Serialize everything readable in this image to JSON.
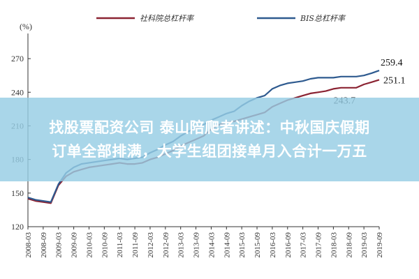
{
  "overlay": {
    "line1": "找股票配资公司 泰山陪爬者讲述：中秋国庆假期",
    "line2": "订单全部排满，大学生组团接单月入合计一万五"
  },
  "chart_data": {
    "type": "line",
    "ylabel": "(%)",
    "ylim": [
      120,
      280
    ],
    "yticks": [
      120,
      150,
      180,
      210,
      240,
      270
    ],
    "xlim": [
      "2008-03",
      "2019-09"
    ],
    "xticks": [
      "2008-03",
      "2008-09",
      "2009-03",
      "2009-09",
      "2010-03",
      "2010-09",
      "2011-03",
      "2011-09",
      "2012-03",
      "2012-09",
      "2013-03",
      "2013-09",
      "2014-03",
      "2014-09",
      "2015-03",
      "2015-09",
      "2016-03",
      "2016-09",
      "2017-03",
      "2017-09",
      "2018-03",
      "2018-09",
      "2019-03",
      "2019-09"
    ],
    "legend_position": "top",
    "grid": false,
    "series": [
      {
        "name": "社科院总杠杆率",
        "color": "#8b2332",
        "x": [
          "2008-03",
          "2008-06",
          "2008-09",
          "2008-12",
          "2009-03",
          "2009-06",
          "2009-09",
          "2009-12",
          "2010-03",
          "2010-06",
          "2010-09",
          "2010-12",
          "2011-03",
          "2011-06",
          "2011-09",
          "2011-12",
          "2012-03",
          "2012-06",
          "2012-09",
          "2012-12",
          "2013-03",
          "2013-06",
          "2013-09",
          "2013-12",
          "2014-03",
          "2014-06",
          "2014-09",
          "2014-12",
          "2015-03",
          "2015-06",
          "2015-09",
          "2015-12",
          "2016-03",
          "2016-06",
          "2016-09",
          "2016-12",
          "2017-03",
          "2017-06",
          "2017-09",
          "2017-12",
          "2018-03",
          "2018-06",
          "2018-09",
          "2018-12",
          "2019-03",
          "2019-06",
          "2019-09"
        ],
        "values": [
          145,
          143,
          142,
          141,
          157,
          165,
          169,
          171,
          173,
          174,
          175,
          176,
          177,
          176,
          176,
          177,
          180,
          182,
          185,
          188,
          192,
          195,
          198,
          201,
          207,
          211,
          213,
          214,
          216,
          218,
          220,
          222,
          227,
          230,
          233,
          235,
          237,
          239,
          240,
          241,
          243,
          244,
          244,
          244,
          247,
          249,
          251.1
        ]
      },
      {
        "name": "BIS总杠杆率",
        "color": "#2e5a8f",
        "x": [
          "2008-03",
          "2008-06",
          "2008-09",
          "2008-12",
          "2009-03",
          "2009-06",
          "2009-09",
          "2009-12",
          "2010-03",
          "2010-06",
          "2010-09",
          "2010-12",
          "2011-03",
          "2011-06",
          "2011-09",
          "2011-12",
          "2012-03",
          "2012-06",
          "2012-09",
          "2012-12",
          "2013-03",
          "2013-06",
          "2013-09",
          "2013-12",
          "2014-03",
          "2014-06",
          "2014-09",
          "2014-12",
          "2015-03",
          "2015-06",
          "2015-09",
          "2015-12",
          "2016-03",
          "2016-06",
          "2016-09",
          "2016-12",
          "2017-03",
          "2017-06",
          "2017-09",
          "2017-12",
          "2018-03",
          "2018-06",
          "2018-09",
          "2018-12",
          "2019-03",
          "2019-06",
          "2019-09"
        ],
        "values": [
          146,
          144,
          143,
          142,
          158,
          168,
          173,
          176,
          177,
          178,
          179,
          180,
          181,
          180,
          181,
          182,
          186,
          189,
          193,
          196,
          201,
          205,
          208,
          211,
          215,
          218,
          221,
          223,
          228,
          232,
          235,
          237,
          243,
          246,
          248,
          249,
          250,
          252,
          253,
          253,
          253,
          254,
          254,
          254,
          255,
          257,
          259.4
        ]
      }
    ],
    "annotations": [
      {
        "text": "259.4",
        "x": "2019-09",
        "y": 259.4,
        "series": 1
      },
      {
        "text": "251.1",
        "x": "2019-09",
        "y": 251.1,
        "series": 0
      },
      {
        "text": "243.7",
        "x": "2018-06",
        "y": 243.7,
        "series": 0
      }
    ]
  }
}
